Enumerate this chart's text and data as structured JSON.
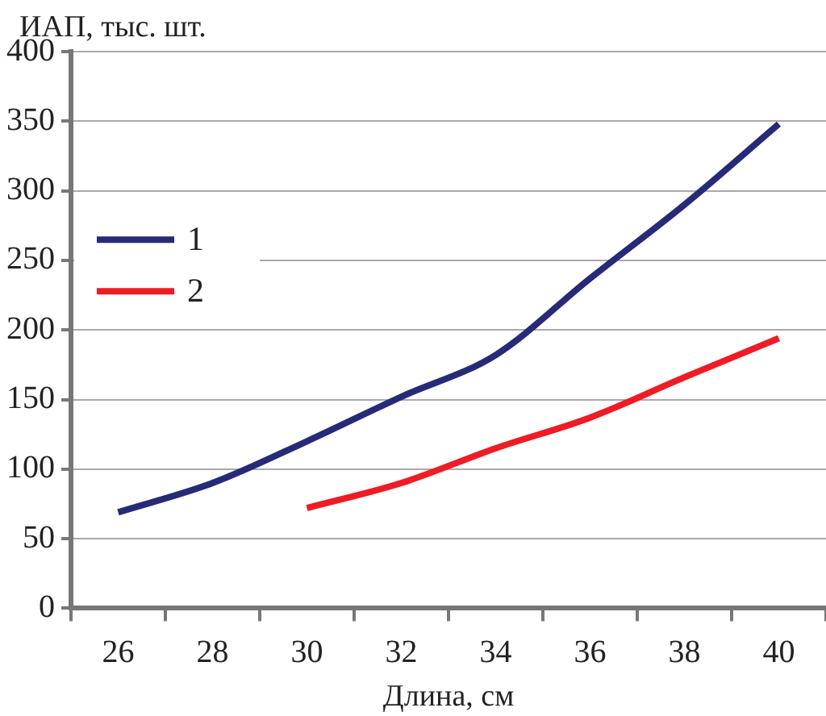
{
  "chart_data": {
    "type": "line",
    "xlabel": "Длина, см",
    "ylabel": "ИАП, тыс. шт.",
    "categories": [
      "26",
      "28",
      "30",
      "32",
      "34",
      "36",
      "38",
      "40"
    ],
    "series": [
      {
        "name": "1",
        "color": "#262a78",
        "values": [
          69,
          90,
          120,
          152,
          182,
          237,
          290,
          348
        ]
      },
      {
        "name": "2",
        "color": "#ee1c25",
        "values": [
          null,
          null,
          72,
          90,
          115,
          137,
          166,
          194
        ]
      }
    ],
    "ylim": [
      0,
      400
    ],
    "yticks": [
      0,
      50,
      100,
      150,
      200,
      250,
      300,
      350,
      400
    ],
    "grid": "y",
    "legend": "left",
    "marker": "none",
    "line_style": "solid"
  }
}
